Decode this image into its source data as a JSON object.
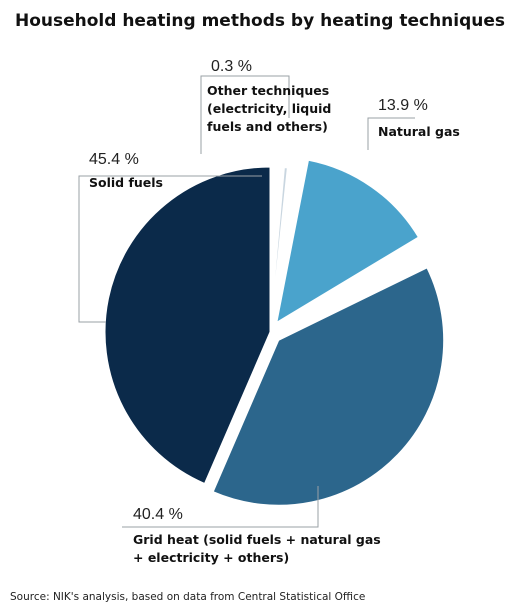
{
  "chart_data": {
    "type": "pie",
    "title": "Household heating methods by heating techniques",
    "source": "Source: NIK's analysis, based on data from Central Statistical Office",
    "slices": [
      {
        "label_lines": [
          "Solid fuels"
        ],
        "value": 45.4,
        "value_label": "45.4 %",
        "color": "#0b2a4a"
      },
      {
        "label_lines": [
          "Other techniques",
          "(electricity, liquid",
          "fuels and others)"
        ],
        "value": 0.3,
        "value_label": "0.3 %",
        "color": "#c9d6e0"
      },
      {
        "label_lines": [
          "Natural gas"
        ],
        "value": 13.9,
        "value_label": "13.9 %",
        "color": "#4aa3cc"
      },
      {
        "label_lines": [
          "Grid heat (solid fuels + natural gas",
          "+ electricity + others)"
        ],
        "value": 40.4,
        "value_label": "40.4 %",
        "color": "#2c668c"
      }
    ]
  }
}
